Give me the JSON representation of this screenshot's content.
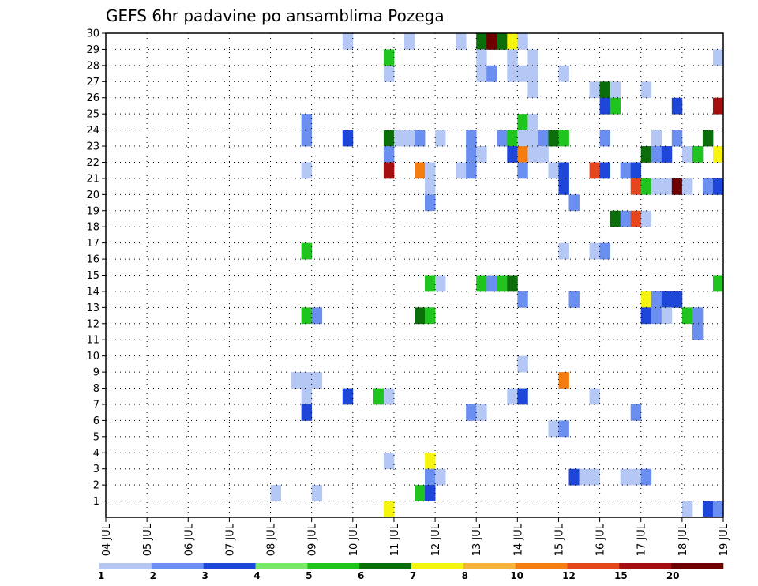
{
  "chart_data": {
    "type": "heatmap",
    "title": "GEFS 6hr padavine po ansamblima Pozega",
    "y_ticks": [
      "1",
      "2",
      "3",
      "4",
      "5",
      "6",
      "7",
      "8",
      "9",
      "10",
      "11",
      "12",
      "13",
      "14",
      "15",
      "16",
      "17",
      "18",
      "19",
      "20",
      "21",
      "22",
      "23",
      "24",
      "25",
      "26",
      "27",
      "28",
      "29",
      "30"
    ],
    "y_range": [
      0,
      30
    ],
    "x_ticks": [
      "04 JUL",
      "05 JUL",
      "06 JUL",
      "07 JUL",
      "08 JUL",
      "09 JUL",
      "10 JUL",
      "11 JUL",
      "12 JUL",
      "13 JUL",
      "14 JUL",
      "15 JUL",
      "16 JUL",
      "17 JUL",
      "18 JUL",
      "19 JUL"
    ],
    "x_range": [
      0,
      60
    ],
    "grid": true,
    "legend": {
      "placement": "bottom",
      "labels": [
        "1",
        "2",
        "3",
        "4",
        "5",
        "6",
        "7",
        "8",
        "10",
        "12",
        "15",
        "20"
      ],
      "colors": [
        "#b4c7f5",
        "#6b8ff0",
        "#1e46d9",
        "#7be86b",
        "#1fc41f",
        "#0b6e0b",
        "#f5f50f",
        "#f5b53c",
        "#f57d0f",
        "#e6461e",
        "#a50f0f",
        "#6e0000"
      ]
    },
    "cells": [
      [
        27,
        28,
        1
      ],
      [
        27,
        29,
        5
      ],
      [
        23,
        30,
        1
      ],
      [
        29,
        30,
        1
      ],
      [
        34,
        30,
        1
      ],
      [
        36,
        30,
        6
      ],
      [
        37,
        30,
        12
      ],
      [
        38,
        30,
        6
      ],
      [
        39,
        30,
        7
      ],
      [
        40,
        30,
        1
      ],
      [
        36,
        29,
        1
      ],
      [
        39,
        29,
        1
      ],
      [
        41,
        29,
        1
      ],
      [
        59,
        29,
        1
      ],
      [
        36,
        28,
        1
      ],
      [
        37,
        28,
        2
      ],
      [
        39,
        28,
        1
      ],
      [
        44,
        28,
        1
      ],
      [
        40,
        28,
        1
      ],
      [
        41,
        28,
        1
      ],
      [
        41,
        27,
        1
      ],
      [
        47,
        27,
        1
      ],
      [
        48,
        27,
        6
      ],
      [
        49,
        27,
        1
      ],
      [
        52,
        27,
        1
      ],
      [
        48,
        26,
        3
      ],
      [
        49,
        26,
        5
      ],
      [
        55,
        26,
        3
      ],
      [
        59,
        26,
        11
      ],
      [
        19,
        25,
        2
      ],
      [
        40,
        25,
        5
      ],
      [
        41,
        25,
        1
      ],
      [
        19,
        24,
        2
      ],
      [
        23,
        24,
        3
      ],
      [
        27,
        24,
        6
      ],
      [
        28,
        24,
        1
      ],
      [
        29,
        24,
        1
      ],
      [
        30,
        24,
        2
      ],
      [
        32,
        24,
        1
      ],
      [
        35,
        24,
        2
      ],
      [
        38,
        24,
        2
      ],
      [
        39,
        24,
        5
      ],
      [
        40,
        24,
        1
      ],
      [
        41,
        24,
        1
      ],
      [
        42,
        24,
        2
      ],
      [
        43,
        24,
        6
      ],
      [
        44,
        24,
        5
      ],
      [
        48,
        24,
        2
      ],
      [
        53,
        24,
        1
      ],
      [
        55,
        24,
        2
      ],
      [
        58,
        24,
        6
      ],
      [
        27,
        23,
        2
      ],
      [
        35,
        23,
        2
      ],
      [
        36,
        23,
        1
      ],
      [
        39,
        23,
        3
      ],
      [
        40,
        23,
        9
      ],
      [
        41,
        23,
        1
      ],
      [
        42,
        23,
        1
      ],
      [
        52,
        23,
        6
      ],
      [
        53,
        23,
        2
      ],
      [
        54,
        23,
        3
      ],
      [
        56,
        23,
        1
      ],
      [
        57,
        23,
        5
      ],
      [
        59,
        23,
        7
      ],
      [
        19,
        22,
        1
      ],
      [
        27,
        22,
        11
      ],
      [
        30,
        22,
        9
      ],
      [
        31,
        22,
        1
      ],
      [
        34,
        22,
        1
      ],
      [
        35,
        22,
        2
      ],
      [
        40,
        22,
        2
      ],
      [
        43,
        22,
        1
      ],
      [
        44,
        22,
        3
      ],
      [
        47,
        22,
        10
      ],
      [
        48,
        22,
        3
      ],
      [
        50,
        22,
        2
      ],
      [
        51,
        22,
        3
      ],
      [
        31,
        21,
        1
      ],
      [
        44,
        21,
        3
      ],
      [
        51,
        21,
        10
      ],
      [
        52,
        21,
        5
      ],
      [
        53,
        21,
        1
      ],
      [
        54,
        21,
        1
      ],
      [
        55,
        21,
        12
      ],
      [
        56,
        21,
        1
      ],
      [
        58,
        21,
        2
      ],
      [
        59,
        21,
        3
      ],
      [
        31,
        20,
        2
      ],
      [
        45,
        20,
        2
      ],
      [
        49,
        19,
        6
      ],
      [
        50,
        19,
        2
      ],
      [
        51,
        19,
        10
      ],
      [
        52,
        19,
        1
      ],
      [
        19,
        17,
        5
      ],
      [
        44,
        17,
        1
      ],
      [
        47,
        17,
        1
      ],
      [
        48,
        17,
        2
      ],
      [
        31,
        15,
        5
      ],
      [
        32,
        15,
        1
      ],
      [
        36,
        15,
        5
      ],
      [
        37,
        15,
        2
      ],
      [
        38,
        15,
        5
      ],
      [
        39,
        15,
        6
      ],
      [
        59,
        15,
        5
      ],
      [
        40,
        14,
        2
      ],
      [
        45,
        14,
        2
      ],
      [
        52,
        14,
        7
      ],
      [
        53,
        14,
        2
      ],
      [
        54,
        14,
        3
      ],
      [
        55,
        14,
        3
      ],
      [
        19,
        13,
        5
      ],
      [
        20,
        13,
        2
      ],
      [
        30,
        13,
        6
      ],
      [
        31,
        13,
        5
      ],
      [
        52,
        13,
        3
      ],
      [
        53,
        13,
        2
      ],
      [
        54,
        13,
        1
      ],
      [
        56,
        13,
        5
      ],
      [
        57,
        13,
        2
      ],
      [
        57,
        12,
        2
      ],
      [
        40,
        10,
        1
      ],
      [
        18,
        9,
        1
      ],
      [
        19,
        9,
        1
      ],
      [
        20,
        9,
        1
      ],
      [
        44,
        9,
        9
      ],
      [
        19,
        8,
        1
      ],
      [
        23,
        8,
        3
      ],
      [
        26,
        8,
        5
      ],
      [
        27,
        8,
        1
      ],
      [
        39,
        8,
        1
      ],
      [
        40,
        8,
        3
      ],
      [
        47,
        8,
        1
      ],
      [
        19,
        7,
        3
      ],
      [
        35,
        7,
        2
      ],
      [
        36,
        7,
        1
      ],
      [
        51,
        7,
        2
      ],
      [
        43,
        6,
        1
      ],
      [
        44,
        6,
        2
      ],
      [
        27,
        4,
        1
      ],
      [
        31,
        4,
        7
      ],
      [
        31,
        3,
        2
      ],
      [
        32,
        3,
        1
      ],
      [
        45,
        3,
        3
      ],
      [
        46,
        3,
        1
      ],
      [
        47,
        3,
        1
      ],
      [
        50,
        3,
        1
      ],
      [
        51,
        3,
        1
      ],
      [
        52,
        3,
        2
      ],
      [
        16,
        2,
        1
      ],
      [
        20,
        2,
        1
      ],
      [
        30,
        2,
        5
      ],
      [
        31,
        2,
        3
      ],
      [
        27,
        1,
        7
      ],
      [
        56,
        1,
        1
      ],
      [
        58,
        1,
        3
      ],
      [
        59,
        1,
        2
      ]
    ]
  }
}
